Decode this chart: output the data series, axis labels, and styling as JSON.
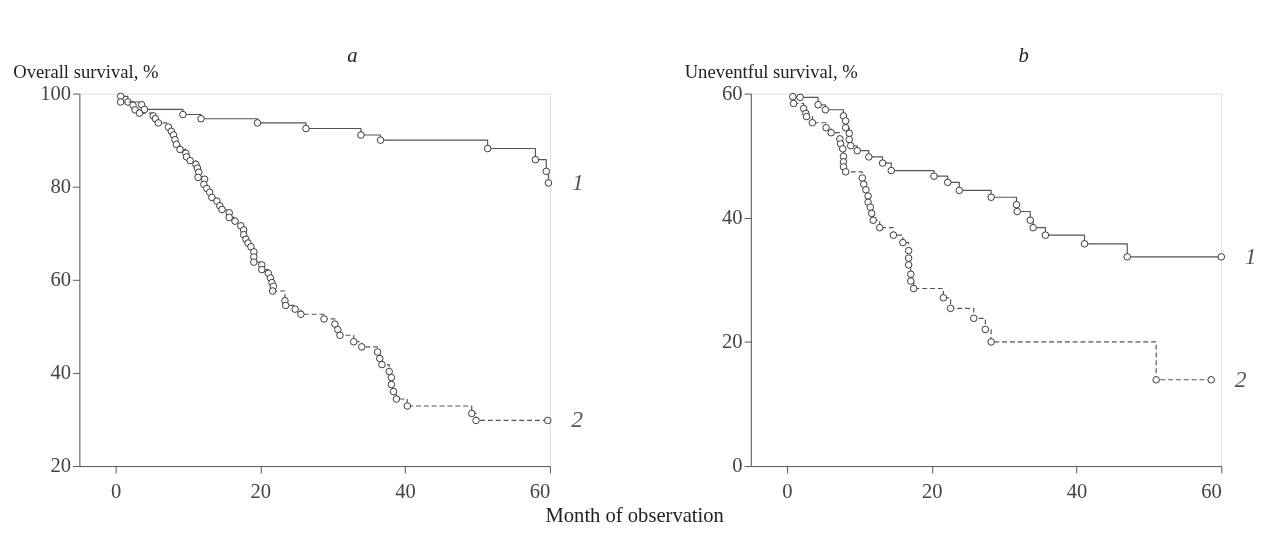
{
  "chart_data": [
    {
      "type": "step",
      "xlabel": "Month of observation",
      "ylabel": "Overall survival, %",
      "annotations": [
        "a"
      ],
      "xlim": [
        -5,
        60
      ],
      "ylim": [
        20,
        100
      ],
      "xticks": [
        0,
        20,
        40,
        60
      ],
      "yticks": [
        20,
        40,
        60,
        80,
        100
      ],
      "grid": false,
      "legend": "right",
      "marker": "circle",
      "series": [
        {
          "name": "1",
          "color": "#555555",
          "line_style": "solid",
          "x": [
            0.7,
            1.7,
            3.6,
            4.0,
            9.3,
            11.8,
            19.6,
            26.3,
            33.9,
            36.6,
            51.4,
            58.0,
            59.5,
            59.8
          ],
          "values": [
            99.4,
            98.2,
            97.6,
            96.6,
            95.5,
            94.6,
            93.7,
            92.5,
            91.1,
            90.0,
            88.2,
            85.8,
            83.3,
            80.8
          ]
        },
        {
          "name": "2",
          "color": "#555555",
          "line_style": "dashed",
          "x": [
            0.7,
            2.4,
            2.7,
            3.3,
            5.2,
            5.5,
            5.9,
            7.3,
            7.7,
            8.0,
            8.2,
            8.4,
            8.9,
            9.7,
            9.8,
            10.3,
            11.1,
            11.3,
            11.5,
            11.4,
            12.3,
            12.2,
            12.6,
            13.0,
            13.3,
            14.0,
            14.4,
            14.7,
            15.7,
            15.7,
            16.5,
            17.3,
            17.7,
            17.7,
            18.0,
            18.3,
            18.7,
            19.1,
            19.1,
            19.1,
            20.2,
            20.2,
            21.1,
            21.4,
            21.6,
            21.8,
            21.7,
            23.4,
            23.5,
            24.8,
            25.6,
            28.8,
            30.3,
            30.7,
            31.0,
            32.9,
            34.0,
            36.2,
            36.5,
            36.8,
            37.8,
            38.1,
            38.1,
            38.4,
            38.8,
            40.3,
            49.2,
            49.8,
            59.7
          ],
          "values": [
            98.2,
            97.5,
            96.5,
            95.8,
            95.2,
            94.6,
            93.7,
            92.8,
            91.9,
            91.1,
            90.1,
            89.1,
            88.0,
            87.2,
            86.4,
            85.6,
            84.8,
            84.0,
            83.1,
            82.0,
            81.6,
            80.5,
            79.6,
            78.8,
            77.7,
            76.9,
            75.9,
            75.1,
            74.4,
            73.4,
            72.6,
            71.6,
            70.7,
            69.7,
            68.7,
            67.9,
            67.1,
            66.0,
            64.9,
            63.8,
            63.2,
            62.2,
            61.4,
            60.4,
            59.4,
            58.6,
            57.6,
            55.5,
            54.5,
            53.7,
            52.6,
            51.6,
            50.5,
            49.3,
            48.1,
            46.7,
            45.6,
            44.5,
            43.1,
            41.8,
            40.3,
            39.0,
            37.5,
            36.0,
            34.4,
            32.9,
            31.3,
            29.8,
            29.8
          ]
        }
      ]
    },
    {
      "type": "step",
      "ylabel": "Uneventful survival, %",
      "annotations": [
        "b"
      ],
      "xlim": [
        -5,
        60
      ],
      "ylim": [
        0,
        60
      ],
      "xticks": [
        0,
        20,
        40,
        60
      ],
      "yticks": [
        0,
        20,
        40,
        60
      ],
      "grid": false,
      "legend": "right",
      "marker": "circle",
      "series": [
        {
          "name": "1",
          "color": "#555555",
          "line_style": "solid",
          "x": [
            0.8,
            1.8,
            4.3,
            5.3,
            7.8,
            8.1,
            8.1,
            8.6,
            8.6,
            8.8,
            9.7,
            11.3,
            13.2,
            14.4,
            20.3,
            22.2,
            23.8,
            28.2,
            31.7,
            31.8,
            33.6,
            34.0,
            35.7,
            41.1,
            47.0,
            60.0
          ],
          "values": [
            59.5,
            59.4,
            58.2,
            57.4,
            56.4,
            55.6,
            54.5,
            53.6,
            52.6,
            51.6,
            50.8,
            49.8,
            48.8,
            47.6,
            46.7,
            45.7,
            44.4,
            43.3,
            42.1,
            41.0,
            39.6,
            38.4,
            37.2,
            35.8,
            33.7,
            33.7
          ]
        },
        {
          "name": "2",
          "color": "#555555",
          "line_style": "dashed",
          "x": [
            0.9,
            2.3,
            2.6,
            2.7,
            3.5,
            5.4,
            6.1,
            7.3,
            7.4,
            7.7,
            7.8,
            7.8,
            7.8,
            8.1,
            10.4,
            10.6,
            10.9,
            11.2,
            11.2,
            11.5,
            11.7,
            11.9,
            12.8,
            14.7,
            16.0,
            16.8,
            16.8,
            16.8,
            17.1,
            17.1,
            17.5,
            21.6,
            22.6,
            25.8,
            27.4,
            28.2,
            51.0,
            58.6
          ],
          "values": [
            58.4,
            57.6,
            56.8,
            56.3,
            55.3,
            54.5,
            53.7,
            52.7,
            51.9,
            51.1,
            49.9,
            49.0,
            48.2,
            47.4,
            46.4,
            45.4,
            44.5,
            43.5,
            42.5,
            41.7,
            40.7,
            39.6,
            38.4,
            37.2,
            36.0,
            34.7,
            33.5,
            32.4,
            30.9,
            29.8,
            28.6,
            27.1,
            25.4,
            23.8,
            22.0,
            20.0,
            13.9,
            13.9
          ]
        }
      ]
    }
  ]
}
